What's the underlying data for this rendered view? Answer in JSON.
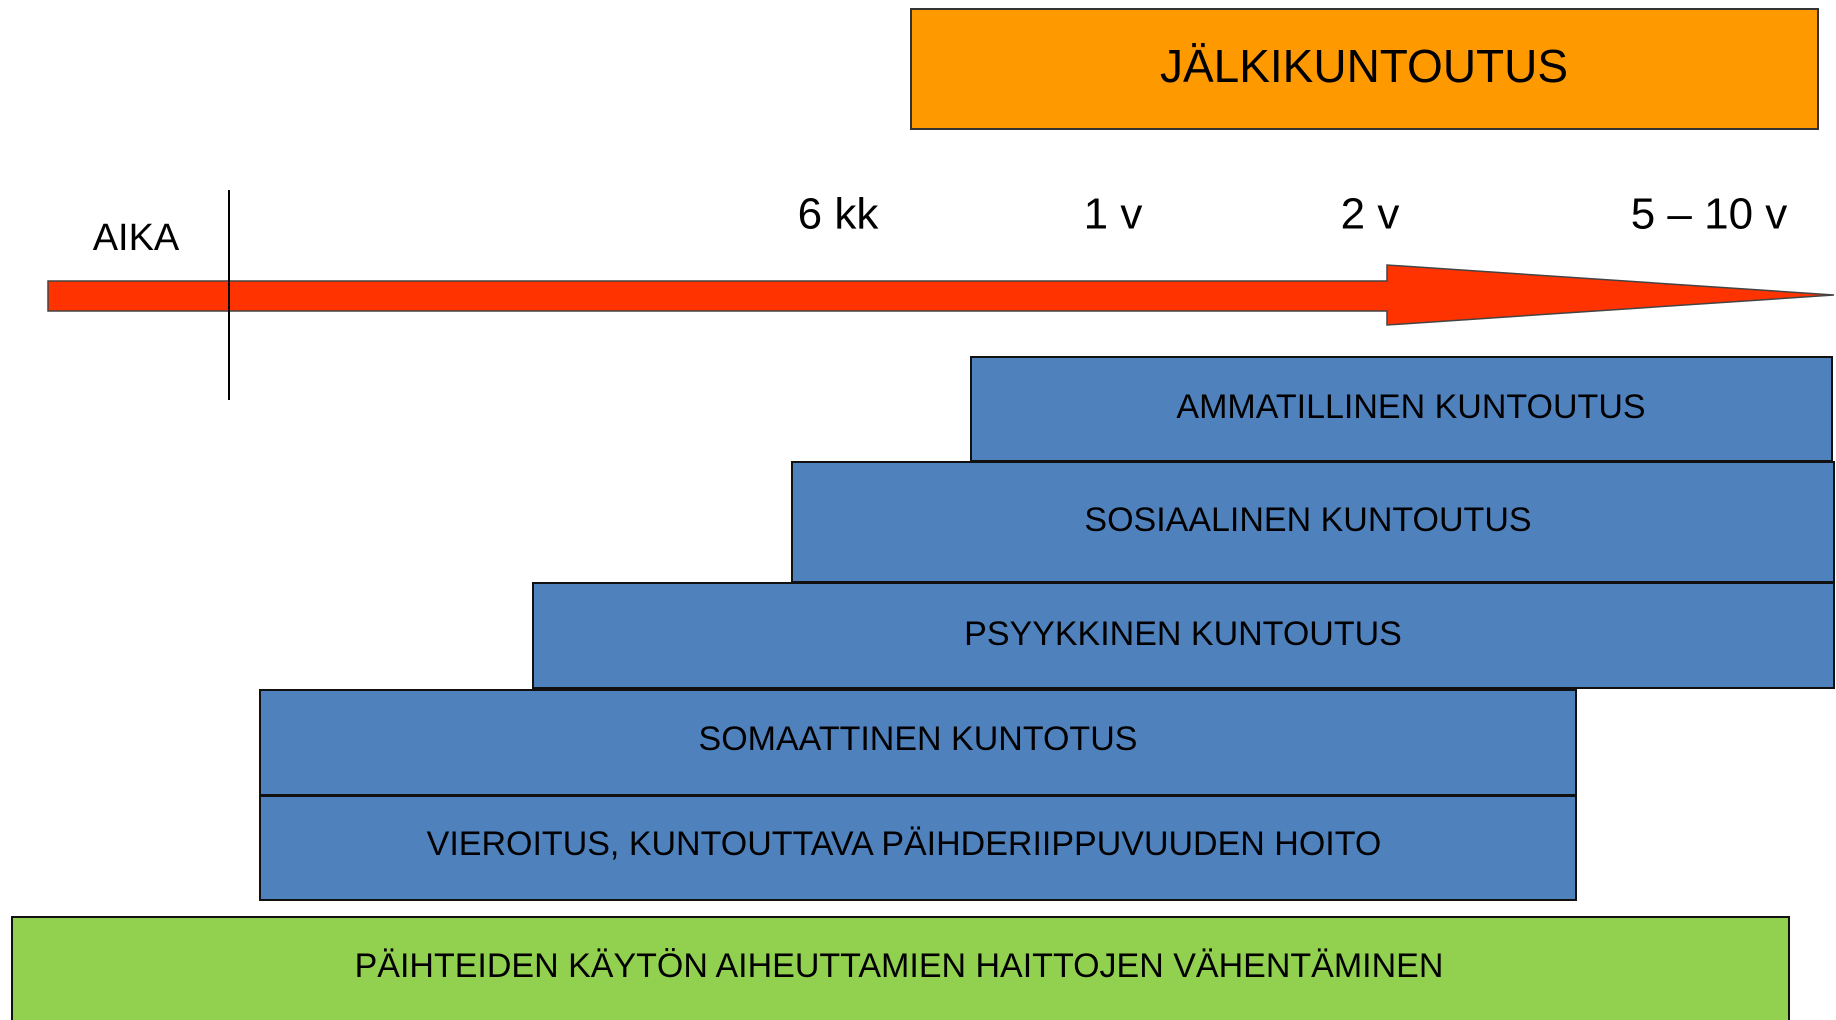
{
  "aftercare": "JÄLKIKUNTOUTUS",
  "timeline": {
    "label": "AIKA",
    "marks": [
      "6 kk",
      "1 v",
      "2 v",
      "5 – 10 v"
    ]
  },
  "stages": [
    "AMMATILLINEN KUNTOUTUS",
    "SOSIAALINEN KUNTOUTUS",
    "PSYYKKINEN KUNTOUTUS",
    "SOMAATTINEN KUNTOTUS",
    "VIEROITUS, KUNTOUTTAVA PÄIHDERIIPPUVUUDEN HOITO"
  ],
  "foundation": "PÄIHTEIDEN KÄYTÖN AIHEUTTAMIEN HAITTOJEN VÄHENTÄMINEN"
}
